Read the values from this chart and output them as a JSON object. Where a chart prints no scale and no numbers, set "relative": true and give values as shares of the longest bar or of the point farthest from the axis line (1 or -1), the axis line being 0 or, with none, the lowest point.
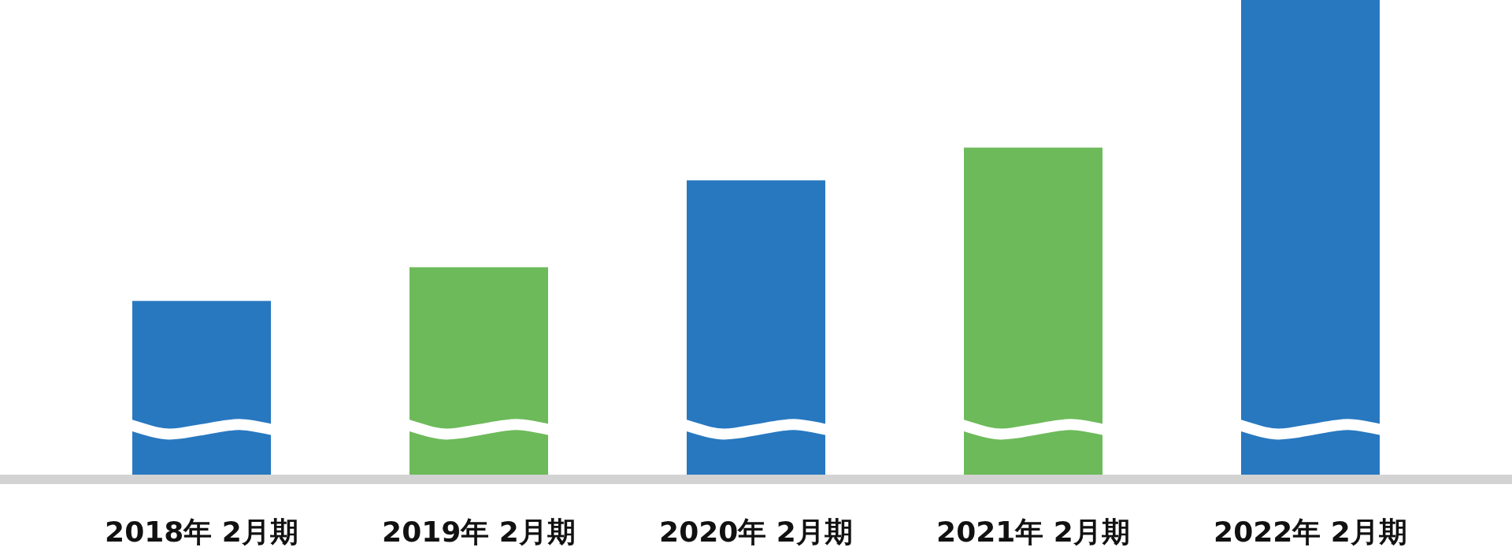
{
  "chart_data": {
    "type": "bar",
    "relative": true,
    "categories": [
      "2018年 2月期",
      "2019年 2月期",
      "2020年 2月期",
      "2021年 2月期",
      "2022年 2月期"
    ],
    "values": [
      0.366,
      0.437,
      0.62,
      0.689,
      1
    ],
    "colors": [
      "#2878c0",
      "#6dba5a",
      "#2878c0",
      "#6dba5a",
      "#2878c0"
    ]
  }
}
